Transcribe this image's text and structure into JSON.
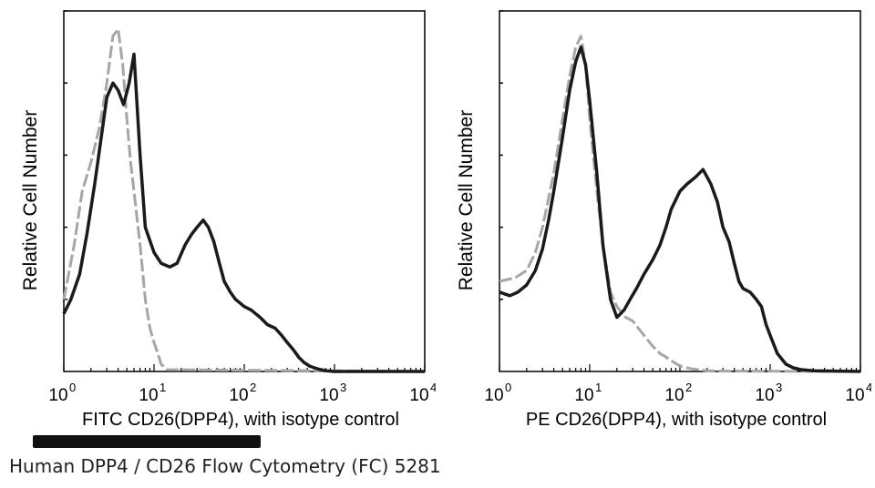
{
  "caption": "Human DPP4 / CD26 Flow Cytometry (FC) 5281",
  "colors": {
    "sample": "#1a1a1a",
    "isotype": "#a6a6a6",
    "axis": "#000000"
  },
  "chart_data": [
    {
      "type": "line",
      "xscale": "log",
      "xlim": [
        1,
        10000
      ],
      "ylim": [
        0,
        1
      ],
      "xlabel": "FITC CD26(DPP4), with isotype control",
      "ylabel": "Relative Cell Number",
      "x_tick_labels": [
        "10",
        "10",
        "10",
        "10",
        "10"
      ],
      "x_tick_exponents": [
        "0",
        "1",
        "2",
        "3",
        "4"
      ],
      "x_ticks": [
        1,
        10,
        100,
        1000,
        10000
      ],
      "series": [
        {
          "style": "solid",
          "x": [
            1,
            1.2,
            1.5,
            1.8,
            2.2,
            2.6,
            3.0,
            3.5,
            4.0,
            4.6,
            5.3,
            6.0,
            7.0,
            8.0,
            10,
            12,
            15,
            18,
            22,
            26,
            30,
            35,
            40,
            46,
            53,
            60,
            70,
            80,
            100,
            120,
            150,
            180,
            220,
            260,
            300,
            350,
            400,
            460,
            530,
            600,
            700,
            800,
            1000,
            10000
          ],
          "y": [
            0.16,
            0.2,
            0.27,
            0.38,
            0.52,
            0.65,
            0.76,
            0.8,
            0.78,
            0.74,
            0.8,
            0.88,
            0.6,
            0.4,
            0.33,
            0.3,
            0.29,
            0.3,
            0.35,
            0.38,
            0.4,
            0.42,
            0.4,
            0.36,
            0.3,
            0.25,
            0.22,
            0.2,
            0.18,
            0.17,
            0.15,
            0.13,
            0.12,
            0.1,
            0.08,
            0.06,
            0.04,
            0.025,
            0.015,
            0.01,
            0.005,
            0.002,
            0,
            0
          ]
        },
        {
          "style": "dashed",
          "x": [
            1,
            1.3,
            1.6,
            2.0,
            2.5,
            3.0,
            3.5,
            4.0,
            4.5,
            5.0,
            5.5,
            6.0,
            7.0,
            8.0,
            9.0,
            10,
            11,
            12,
            14,
            10000
          ],
          "y": [
            0.2,
            0.35,
            0.5,
            0.58,
            0.68,
            0.8,
            0.93,
            0.95,
            0.85,
            0.7,
            0.58,
            0.5,
            0.35,
            0.2,
            0.12,
            0.08,
            0.05,
            0.02,
            0.005,
            0
          ]
        }
      ]
    },
    {
      "type": "line",
      "xscale": "log",
      "xlim": [
        1,
        10000
      ],
      "ylim": [
        0,
        1
      ],
      "xlabel": "PE CD26(DPP4), with isotype control",
      "ylabel": "Relative Cell Number",
      "x_tick_labels": [
        "10",
        "10",
        "10",
        "10",
        "10"
      ],
      "x_tick_exponents": [
        "0",
        "1",
        "2",
        "3",
        "4"
      ],
      "x_ticks": [
        1,
        10,
        100,
        1000,
        10000
      ],
      "series": [
        {
          "style": "solid",
          "x": [
            1,
            1.3,
            1.6,
            2.0,
            2.5,
            3.0,
            3.5,
            4.0,
            5.0,
            6.0,
            7.0,
            8.0,
            9.0,
            10,
            12,
            14,
            17,
            20,
            24,
            28,
            33,
            40,
            50,
            60,
            70,
            80,
            100,
            120,
            150,
            180,
            220,
            260,
            300,
            350,
            400,
            450,
            500,
            600,
            700,
            800,
            900,
            1000,
            1200,
            1500,
            1800,
            2200,
            3000,
            10000
          ],
          "y": [
            0.22,
            0.21,
            0.22,
            0.24,
            0.28,
            0.34,
            0.42,
            0.5,
            0.65,
            0.78,
            0.86,
            0.9,
            0.85,
            0.75,
            0.55,
            0.35,
            0.2,
            0.15,
            0.17,
            0.2,
            0.23,
            0.27,
            0.31,
            0.35,
            0.4,
            0.45,
            0.5,
            0.52,
            0.54,
            0.56,
            0.52,
            0.47,
            0.4,
            0.36,
            0.3,
            0.25,
            0.23,
            0.22,
            0.2,
            0.18,
            0.13,
            0.1,
            0.05,
            0.02,
            0.01,
            0.005,
            0.002,
            0
          ]
        },
        {
          "style": "dashed",
          "x": [
            1,
            1.5,
            2.0,
            2.5,
            3.0,
            4.0,
            5.0,
            6.0,
            7.0,
            8.0,
            9.0,
            10,
            12,
            14,
            17,
            20,
            25,
            30,
            40,
            50,
            60,
            70,
            80,
            100,
            130,
            160,
            200,
            300,
            10000
          ],
          "y": [
            0.25,
            0.26,
            0.28,
            0.33,
            0.4,
            0.55,
            0.7,
            0.82,
            0.9,
            0.93,
            0.85,
            0.7,
            0.5,
            0.35,
            0.22,
            0.18,
            0.15,
            0.14,
            0.1,
            0.07,
            0.05,
            0.04,
            0.03,
            0.015,
            0.008,
            0.005,
            0.002,
            0.001,
            0
          ]
        }
      ]
    }
  ]
}
